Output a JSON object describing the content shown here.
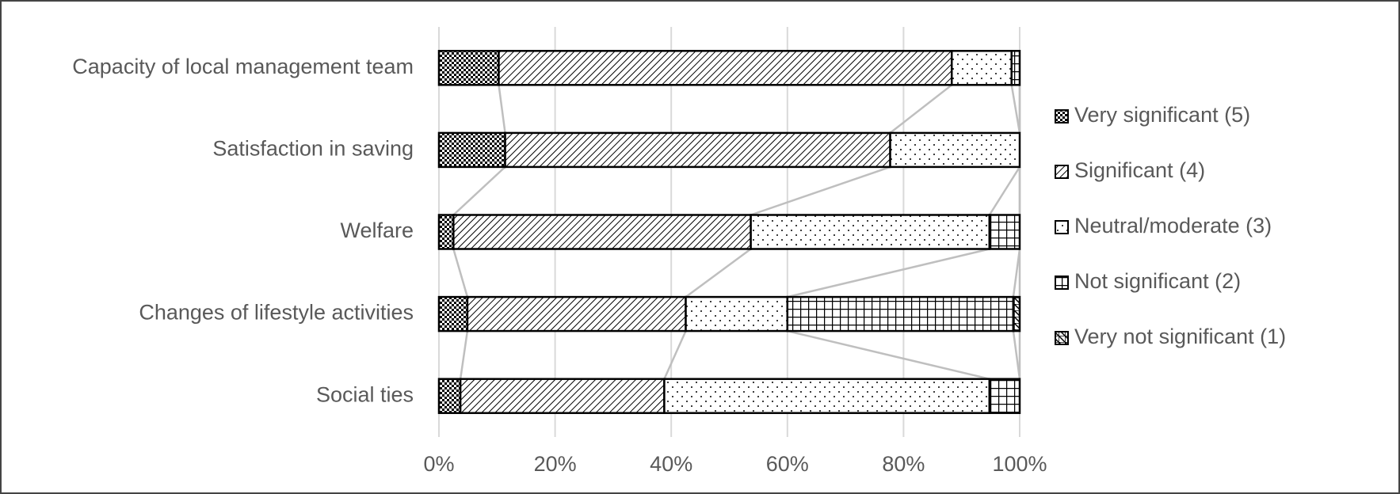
{
  "chart_data": {
    "type": "stacked-bar-horizontal",
    "categories": [
      "Capacity of local management team",
      "Satisfaction in saving",
      "Welfare",
      "Changes of lifestyle activities",
      "Social ties"
    ],
    "series": [
      {
        "name": "Very significant (5)",
        "color": "#000000",
        "values": [
          10.3,
          11.4,
          2.5,
          4.9,
          3.7
        ]
      },
      {
        "name": "Significant (4)",
        "color": "#000000",
        "values": [
          78,
          66.3,
          51.2,
          37.6,
          35.1
        ]
      },
      {
        "name": "Neutral/moderate (3)",
        "color": "#000000",
        "values": [
          10.3,
          22.3,
          41.1,
          17.5,
          56
        ]
      },
      {
        "name": "Not significant (2)",
        "color": "#000000",
        "values": [
          1.4,
          0,
          5.2,
          38.9,
          5.2
        ]
      },
      {
        "name": "Very not significant (1)",
        "color": "#000000",
        "values": [
          0,
          0,
          0,
          1.1,
          0
        ]
      }
    ],
    "xlim": [
      0,
      100
    ],
    "xticks": [
      {
        "value": 0,
        "label": "0%"
      },
      {
        "value": 20,
        "label": "20%"
      },
      {
        "value": 40,
        "label": "40%"
      },
      {
        "value": 60,
        "label": "60%"
      },
      {
        "value": 80,
        "label": "80%"
      },
      {
        "value": 100,
        "label": "100%"
      }
    ],
    "grid": true,
    "legend": "right"
  }
}
